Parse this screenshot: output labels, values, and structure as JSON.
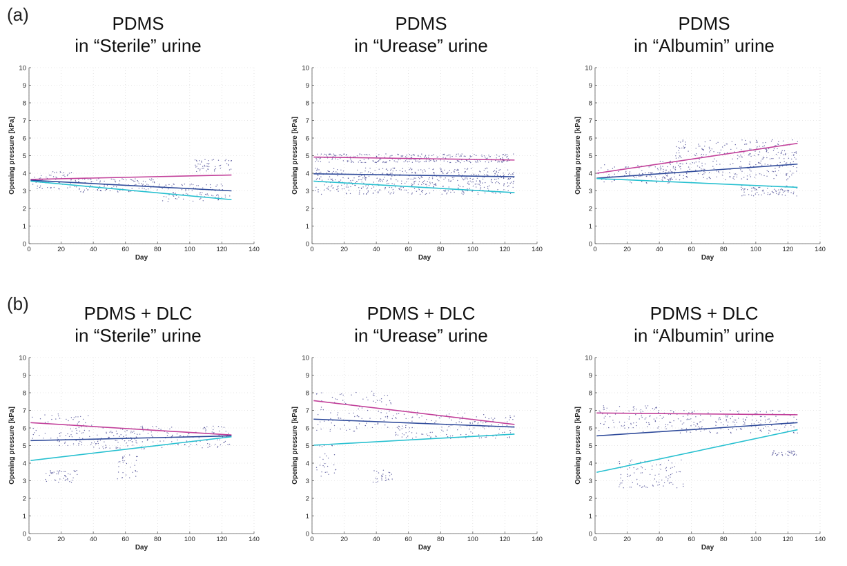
{
  "figure": {
    "row_labels": [
      "(a)",
      "(b)"
    ]
  },
  "colors": {
    "fit_upper": "#c2409a",
    "fit_mean": "#2e4a9a",
    "fit_lower": "#27c0d0",
    "scatter": "#3a3a8a",
    "grid": "#cfcfcf"
  },
  "chart_data": [
    {
      "type": "scatter",
      "title_line1": "PDMS",
      "title_line2": "in “Sterile” urine",
      "xlabel": "Day",
      "ylabel": "Opening pressure [kPa]",
      "xlim": [
        0,
        140
      ],
      "ylim": [
        0,
        10
      ],
      "xticks": [
        0,
        20,
        40,
        60,
        80,
        100,
        120,
        140
      ],
      "yticks": [
        0,
        1,
        2,
        3,
        4,
        5,
        6,
        7,
        8,
        9,
        10
      ],
      "grid": true,
      "fit_lines": [
        {
          "color": "fit_upper",
          "x": [
            1,
            126
          ],
          "y": [
            3.65,
            3.9
          ]
        },
        {
          "color": "fit_mean",
          "x": [
            1,
            126
          ],
          "y": [
            3.6,
            3.0
          ]
        },
        {
          "color": "fit_lower",
          "x": [
            1,
            126
          ],
          "y": [
            3.55,
            2.5
          ]
        }
      ],
      "scatter_bands": [
        {
          "x": [
            2,
            30
          ],
          "y": [
            3.1,
            4.1
          ]
        },
        {
          "x": [
            30,
            80
          ],
          "y": [
            2.9,
            3.7
          ]
        },
        {
          "x": [
            80,
            126
          ],
          "y": [
            2.4,
            3.4
          ]
        },
        {
          "x": [
            103,
            126
          ],
          "y": [
            4.1,
            4.8
          ]
        }
      ]
    },
    {
      "type": "scatter",
      "title_line1": "PDMS",
      "title_line2": "in “Urease” urine",
      "xlabel": "Day",
      "ylabel": "Opening pressure [kPa]",
      "xlim": [
        0,
        140
      ],
      "ylim": [
        0,
        10
      ],
      "xticks": [
        0,
        20,
        40,
        60,
        80,
        100,
        120,
        140
      ],
      "yticks": [
        0,
        1,
        2,
        3,
        4,
        5,
        6,
        7,
        8,
        9,
        10
      ],
      "grid": true,
      "fit_lines": [
        {
          "color": "fit_upper",
          "x": [
            1,
            126
          ],
          "y": [
            4.92,
            4.75
          ]
        },
        {
          "color": "fit_mean",
          "x": [
            1,
            126
          ],
          "y": [
            3.97,
            3.8
          ]
        },
        {
          "color": "fit_lower",
          "x": [
            1,
            126
          ],
          "y": [
            3.55,
            2.9
          ]
        }
      ],
      "scatter_bands": [
        {
          "x": [
            2,
            126
          ],
          "y": [
            4.6,
            5.1
          ]
        },
        {
          "x": [
            2,
            126
          ],
          "y": [
            3.6,
            4.3
          ]
        },
        {
          "x": [
            2,
            126
          ],
          "y": [
            2.8,
            3.6
          ]
        }
      ]
    },
    {
      "type": "scatter",
      "title_line1": "PDMS",
      "title_line2": "in “Albumin” urine",
      "xlabel": "Day",
      "ylabel": "Opening pressure [kPa]",
      "xlim": [
        0,
        140
      ],
      "ylim": [
        0,
        10
      ],
      "xticks": [
        0,
        20,
        40,
        60,
        80,
        100,
        120,
        140
      ],
      "yticks": [
        0,
        1,
        2,
        3,
        4,
        5,
        6,
        7,
        8,
        9,
        10
      ],
      "grid": true,
      "fit_lines": [
        {
          "color": "fit_upper",
          "x": [
            1,
            126
          ],
          "y": [
            4.0,
            5.7
          ]
        },
        {
          "color": "fit_mean",
          "x": [
            1,
            126
          ],
          "y": [
            3.72,
            4.52
          ]
        },
        {
          "color": "fit_lower",
          "x": [
            1,
            126
          ],
          "y": [
            3.7,
            3.2
          ]
        }
      ],
      "scatter_bands": [
        {
          "x": [
            2,
            50
          ],
          "y": [
            3.4,
            4.5
          ]
        },
        {
          "x": [
            50,
            126
          ],
          "y": [
            4.8,
            5.9
          ]
        },
        {
          "x": [
            40,
            126
          ],
          "y": [
            3.6,
            4.7
          ]
        },
        {
          "x": [
            90,
            126
          ],
          "y": [
            2.7,
            3.3
          ]
        }
      ]
    },
    {
      "type": "scatter",
      "title_line1": "PDMS + DLC",
      "title_line2": "in “Sterile” urine",
      "xlabel": "Day",
      "ylabel": "Opening pressure [kPa]",
      "xlim": [
        0,
        140
      ],
      "ylim": [
        0,
        10
      ],
      "xticks": [
        0,
        20,
        40,
        60,
        80,
        100,
        120,
        140
      ],
      "yticks": [
        0,
        1,
        2,
        3,
        4,
        5,
        6,
        7,
        8,
        9,
        10
      ],
      "grid": true,
      "fit_lines": [
        {
          "color": "fit_upper",
          "x": [
            1,
            126
          ],
          "y": [
            6.3,
            5.6
          ]
        },
        {
          "color": "fit_mean",
          "x": [
            1,
            126
          ],
          "y": [
            5.28,
            5.55
          ]
        },
        {
          "color": "fit_lower",
          "x": [
            1,
            126
          ],
          "y": [
            4.15,
            5.5
          ]
        }
      ],
      "scatter_bands": [
        {
          "x": [
            2,
            40
          ],
          "y": [
            5.0,
            6.8
          ]
        },
        {
          "x": [
            40,
            126
          ],
          "y": [
            4.8,
            6.1
          ]
        },
        {
          "x": [
            10,
            30
          ],
          "y": [
            2.9,
            3.6
          ]
        },
        {
          "x": [
            55,
            68
          ],
          "y": [
            3.1,
            4.5
          ]
        }
      ]
    },
    {
      "type": "scatter",
      "title_line1": "PDMS + DLC",
      "title_line2": "in “Urease” urine",
      "xlabel": "Day",
      "ylabel": "Opening pressure [kPa]",
      "xlim": [
        0,
        140
      ],
      "ylim": [
        0,
        10
      ],
      "xticks": [
        0,
        20,
        40,
        60,
        80,
        100,
        120,
        140
      ],
      "yticks": [
        0,
        1,
        2,
        3,
        4,
        5,
        6,
        7,
        8,
        9,
        10
      ],
      "grid": true,
      "fit_lines": [
        {
          "color": "fit_upper",
          "x": [
            1,
            126
          ],
          "y": [
            7.55,
            6.2
          ]
        },
        {
          "color": "fit_mean",
          "x": [
            1,
            126
          ],
          "y": [
            6.5,
            6.05
          ]
        },
        {
          "color": "fit_lower",
          "x": [
            1,
            126
          ],
          "y": [
            5.02,
            5.65
          ]
        }
      ],
      "scatter_bands": [
        {
          "x": [
            2,
            50
          ],
          "y": [
            5.8,
            8.1
          ]
        },
        {
          "x": [
            50,
            126
          ],
          "y": [
            5.4,
            6.9
          ]
        },
        {
          "x": [
            2,
            15
          ],
          "y": [
            3.2,
            5.2
          ]
        },
        {
          "x": [
            38,
            50
          ],
          "y": [
            2.9,
            3.6
          ]
        }
      ]
    },
    {
      "type": "scatter",
      "title_line1": "PDMS + DLC",
      "title_line2": "in “Albumin” urine",
      "xlabel": "Day",
      "ylabel": "Opening pressure [kPa]",
      "xlim": [
        0,
        140
      ],
      "ylim": [
        0,
        10
      ],
      "xticks": [
        0,
        20,
        40,
        60,
        80,
        100,
        120,
        140
      ],
      "yticks": [
        0,
        1,
        2,
        3,
        4,
        5,
        6,
        7,
        8,
        9,
        10
      ],
      "grid": true,
      "fit_lines": [
        {
          "color": "fit_upper",
          "x": [
            1,
            126
          ],
          "y": [
            6.85,
            6.75
          ]
        },
        {
          "color": "fit_mean",
          "x": [
            1,
            126
          ],
          "y": [
            5.55,
            6.3
          ]
        },
        {
          "color": "fit_lower",
          "x": [
            1,
            126
          ],
          "y": [
            3.48,
            5.9
          ]
        }
      ],
      "scatter_bands": [
        {
          "x": [
            2,
            40
          ],
          "y": [
            5.8,
            7.3
          ]
        },
        {
          "x": [
            40,
            126
          ],
          "y": [
            5.7,
            7.0
          ]
        },
        {
          "x": [
            15,
            55
          ],
          "y": [
            2.6,
            4.2
          ]
        },
        {
          "x": [
            110,
            126
          ],
          "y": [
            4.4,
            4.7
          ]
        }
      ]
    }
  ]
}
